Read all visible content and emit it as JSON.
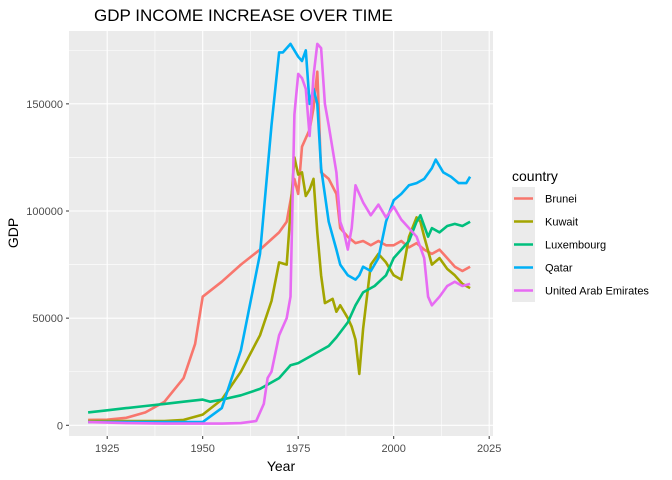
{
  "chart_data": {
    "type": "line",
    "title": "GDP INCOME INCREASE OVER TIME",
    "xlabel": "Year",
    "ylabel": "GDP",
    "xlim": [
      1915,
      2026
    ],
    "ylim": [
      -5000,
      184000
    ],
    "x_ticks": [
      1925,
      1950,
      1975,
      2000,
      2025
    ],
    "y_ticks": [
      0,
      50000,
      100000,
      150000
    ],
    "y_tick_labels": [
      "0",
      "50000",
      "100000",
      "150000"
    ],
    "grid": true,
    "legend": {
      "title": "country",
      "placement": "right"
    },
    "series": [
      {
        "name": "Brunei",
        "color": "#F8766D",
        "points": [
          [
            1920,
            2500
          ],
          [
            1925,
            2600
          ],
          [
            1930,
            3500
          ],
          [
            1935,
            6000
          ],
          [
            1940,
            11000
          ],
          [
            1945,
            22000
          ],
          [
            1948,
            38000
          ],
          [
            1950,
            60000
          ],
          [
            1955,
            67000
          ],
          [
            1960,
            75000
          ],
          [
            1965,
            82000
          ],
          [
            1970,
            90000
          ],
          [
            1972,
            95000
          ],
          [
            1974,
            115000
          ],
          [
            1975,
            108000
          ],
          [
            1976,
            130000
          ],
          [
            1978,
            138000
          ],
          [
            1979,
            148000
          ],
          [
            1980,
            165000
          ],
          [
            1981,
            118000
          ],
          [
            1983,
            115000
          ],
          [
            1985,
            108000
          ],
          [
            1986,
            92000
          ],
          [
            1988,
            88000
          ],
          [
            1990,
            85000
          ],
          [
            1992,
            86000
          ],
          [
            1994,
            84000
          ],
          [
            1996,
            86000
          ],
          [
            1998,
            84000
          ],
          [
            2000,
            84000
          ],
          [
            2002,
            86000
          ],
          [
            2004,
            83000
          ],
          [
            2006,
            85000
          ],
          [
            2008,
            82000
          ],
          [
            2010,
            80000
          ],
          [
            2012,
            82000
          ],
          [
            2014,
            78000
          ],
          [
            2016,
            74000
          ],
          [
            2018,
            72000
          ],
          [
            2020,
            74000
          ]
        ]
      },
      {
        "name": "Kuwait",
        "color": "#A3A500",
        "points": [
          [
            1920,
            2000
          ],
          [
            1930,
            2000
          ],
          [
            1940,
            2000
          ],
          [
            1945,
            2500
          ],
          [
            1950,
            5000
          ],
          [
            1955,
            12000
          ],
          [
            1960,
            25000
          ],
          [
            1965,
            42000
          ],
          [
            1968,
            58000
          ],
          [
            1970,
            76000
          ],
          [
            1972,
            75000
          ],
          [
            1974,
            125000
          ],
          [
            1975,
            117000
          ],
          [
            1976,
            118000
          ],
          [
            1977,
            107000
          ],
          [
            1978,
            110000
          ],
          [
            1979,
            115000
          ],
          [
            1980,
            90000
          ],
          [
            1981,
            70000
          ],
          [
            1982,
            57000
          ],
          [
            1984,
            59000
          ],
          [
            1985,
            53000
          ],
          [
            1986,
            56000
          ],
          [
            1988,
            50000
          ],
          [
            1989,
            46000
          ],
          [
            1990,
            40000
          ],
          [
            1991,
            24000
          ],
          [
            1992,
            45000
          ],
          [
            1994,
            75000
          ],
          [
            1996,
            80000
          ],
          [
            1998,
            76000
          ],
          [
            2000,
            70000
          ],
          [
            2002,
            68000
          ],
          [
            2004,
            88000
          ],
          [
            2006,
            97000
          ],
          [
            2007,
            95000
          ],
          [
            2008,
            88000
          ],
          [
            2010,
            75000
          ],
          [
            2012,
            78000
          ],
          [
            2014,
            73000
          ],
          [
            2016,
            70000
          ],
          [
            2018,
            66000
          ],
          [
            2020,
            64000
          ]
        ]
      },
      {
        "name": "Luxembourg",
        "color": "#00BF7D",
        "points": [
          [
            1920,
            6000
          ],
          [
            1925,
            7000
          ],
          [
            1930,
            8000
          ],
          [
            1935,
            9000
          ],
          [
            1940,
            10000
          ],
          [
            1945,
            11000
          ],
          [
            1950,
            12000
          ],
          [
            1952,
            11000
          ],
          [
            1955,
            12000
          ],
          [
            1960,
            14000
          ],
          [
            1965,
            17000
          ],
          [
            1970,
            22000
          ],
          [
            1973,
            28000
          ],
          [
            1975,
            29000
          ],
          [
            1978,
            32000
          ],
          [
            1980,
            34000
          ],
          [
            1983,
            37000
          ],
          [
            1985,
            41000
          ],
          [
            1988,
            48000
          ],
          [
            1990,
            56000
          ],
          [
            1992,
            62000
          ],
          [
            1995,
            65000
          ],
          [
            1998,
            70000
          ],
          [
            2000,
            78000
          ],
          [
            2002,
            82000
          ],
          [
            2004,
            86000
          ],
          [
            2006,
            95000
          ],
          [
            2007,
            98000
          ],
          [
            2009,
            88000
          ],
          [
            2010,
            92000
          ],
          [
            2012,
            90000
          ],
          [
            2014,
            93000
          ],
          [
            2016,
            94000
          ],
          [
            2018,
            93000
          ],
          [
            2020,
            95000
          ]
        ]
      },
      {
        "name": "Qatar",
        "color": "#00B0F6",
        "points": [
          [
            1920,
            1500
          ],
          [
            1930,
            1500
          ],
          [
            1940,
            1500
          ],
          [
            1950,
            1500
          ],
          [
            1955,
            8000
          ],
          [
            1960,
            35000
          ],
          [
            1965,
            80000
          ],
          [
            1968,
            140000
          ],
          [
            1970,
            174000
          ],
          [
            1971,
            174000
          ],
          [
            1973,
            178000
          ],
          [
            1975,
            172000
          ],
          [
            1976,
            170000
          ],
          [
            1977,
            175000
          ],
          [
            1978,
            150000
          ],
          [
            1979,
            157000
          ],
          [
            1980,
            150000
          ],
          [
            1981,
            120000
          ],
          [
            1983,
            95000
          ],
          [
            1985,
            82000
          ],
          [
            1986,
            75000
          ],
          [
            1988,
            70000
          ],
          [
            1990,
            68000
          ],
          [
            1991,
            70000
          ],
          [
            1992,
            74000
          ],
          [
            1994,
            72000
          ],
          [
            1996,
            78000
          ],
          [
            1998,
            95000
          ],
          [
            2000,
            105000
          ],
          [
            2002,
            108000
          ],
          [
            2004,
            112000
          ],
          [
            2006,
            113000
          ],
          [
            2008,
            115000
          ],
          [
            2010,
            120000
          ],
          [
            2011,
            124000
          ],
          [
            2013,
            118000
          ],
          [
            2015,
            116000
          ],
          [
            2017,
            113000
          ],
          [
            2019,
            113000
          ],
          [
            2020,
            116000
          ]
        ]
      },
      {
        "name": "United Arab Emirates",
        "color": "#E76BF3",
        "points": [
          [
            1920,
            1500
          ],
          [
            1930,
            1000
          ],
          [
            1940,
            800
          ],
          [
            1950,
            800
          ],
          [
            1955,
            800
          ],
          [
            1960,
            1000
          ],
          [
            1964,
            2000
          ],
          [
            1966,
            10000
          ],
          [
            1967,
            22000
          ],
          [
            1968,
            25000
          ],
          [
            1970,
            42000
          ],
          [
            1972,
            50000
          ],
          [
            1973,
            60000
          ],
          [
            1974,
            145000
          ],
          [
            1975,
            164000
          ],
          [
            1976,
            162000
          ],
          [
            1977,
            157000
          ],
          [
            1978,
            135000
          ],
          [
            1979,
            163000
          ],
          [
            1980,
            178000
          ],
          [
            1981,
            176000
          ],
          [
            1982,
            150000
          ],
          [
            1983,
            140000
          ],
          [
            1985,
            118000
          ],
          [
            1986,
            95000
          ],
          [
            1987,
            90000
          ],
          [
            1988,
            82000
          ],
          [
            1989,
            92000
          ],
          [
            1990,
            112000
          ],
          [
            1991,
            108000
          ],
          [
            1992,
            104000
          ],
          [
            1994,
            98000
          ],
          [
            1996,
            103000
          ],
          [
            1998,
            97000
          ],
          [
            2000,
            102000
          ],
          [
            2002,
            96000
          ],
          [
            2004,
            92000
          ],
          [
            2006,
            88000
          ],
          [
            2008,
            78000
          ],
          [
            2009,
            60000
          ],
          [
            2010,
            56000
          ],
          [
            2012,
            60000
          ],
          [
            2014,
            65000
          ],
          [
            2016,
            67000
          ],
          [
            2018,
            65000
          ],
          [
            2020,
            66000
          ]
        ]
      }
    ]
  }
}
